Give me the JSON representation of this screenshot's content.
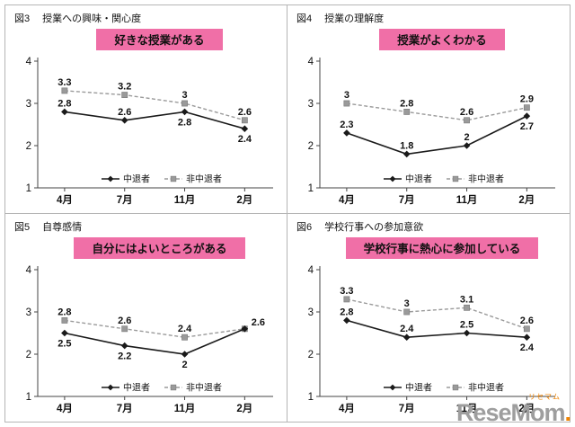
{
  "colors": {
    "title_bg": "#f06fa7",
    "solid_series": "#1a1a1a",
    "dashed_series": "#9a9a9a",
    "axis": "#444444",
    "label_text": "#111111",
    "panel_border": "#b5b5b5",
    "watermark_gray": "#9e9e9e",
    "watermark_orange": "#f08300"
  },
  "axis": {
    "x_labels": [
      "4月",
      "7月",
      "11月",
      "2月"
    ],
    "y_ticks": [
      "4",
      "3",
      "2",
      "1"
    ],
    "y_min": 1,
    "y_max": 4
  },
  "watermark": {
    "main": "ReseMom",
    "dot": ".",
    "sub": "リセマム"
  },
  "chart_data": [
    {
      "type": "line",
      "fig": "図3",
      "caption": "授業への興味・関心度",
      "title": "好きな授業がある",
      "x": [
        "4月",
        "7月",
        "11月",
        "2月"
      ],
      "ylim": [
        1,
        4
      ],
      "series": [
        {
          "name": "中退者",
          "style": "solid",
          "marker": "diamond",
          "values": [
            2.8,
            2.6,
            2.8,
            2.4
          ],
          "labels": [
            "2.8",
            "2.6",
            "2.8",
            "2.4"
          ]
        },
        {
          "name": "非中退者",
          "style": "dashed",
          "marker": "square",
          "values": [
            3.3,
            3.2,
            3.0,
            2.6
          ],
          "labels": [
            "3.3",
            "3.2",
            "3",
            "2.6"
          ]
        }
      ]
    },
    {
      "type": "line",
      "fig": "図4",
      "caption": "授業の理解度",
      "title": "授業がよくわかる",
      "x": [
        "4月",
        "7月",
        "11月",
        "2月"
      ],
      "ylim": [
        1,
        4
      ],
      "series": [
        {
          "name": "中退者",
          "style": "solid",
          "marker": "diamond",
          "values": [
            2.3,
            1.8,
            2.0,
            2.7
          ],
          "labels": [
            "2.3",
            "1.8",
            "2",
            "2.7"
          ]
        },
        {
          "name": "非中退者",
          "style": "dashed",
          "marker": "square",
          "values": [
            3.0,
            2.8,
            2.6,
            2.9
          ],
          "labels": [
            "3",
            "2.8",
            "2.6",
            "2.9"
          ]
        }
      ]
    },
    {
      "type": "line",
      "fig": "図5",
      "caption": "自尊感情",
      "title": "自分にはよいところがある",
      "x": [
        "4月",
        "7月",
        "11月",
        "2月"
      ],
      "ylim": [
        1,
        4
      ],
      "series": [
        {
          "name": "中退者",
          "style": "solid",
          "marker": "diamond",
          "values": [
            2.5,
            2.2,
            2.0,
            2.6
          ],
          "labels": [
            "2.5",
            "2.2",
            "2",
            "2.6"
          ]
        },
        {
          "name": "非中退者",
          "style": "dashed",
          "marker": "square",
          "values": [
            2.8,
            2.6,
            2.4,
            2.6
          ],
          "labels": [
            "2.8",
            "2.6",
            "2.4",
            ""
          ]
        }
      ]
    },
    {
      "type": "line",
      "fig": "図6",
      "caption": "学校行事への参加意欲",
      "title": "学校行事に熱心に参加している",
      "x": [
        "4月",
        "7月",
        "11月",
        "2月"
      ],
      "ylim": [
        1,
        4
      ],
      "series": [
        {
          "name": "中退者",
          "style": "solid",
          "marker": "diamond",
          "values": [
            2.8,
            2.4,
            2.5,
            2.4
          ],
          "labels": [
            "2.8",
            "2.4",
            "2.5",
            "2.4"
          ]
        },
        {
          "name": "非中退者",
          "style": "dashed",
          "marker": "square",
          "values": [
            3.3,
            3.0,
            3.1,
            2.6
          ],
          "labels": [
            "3.3",
            "3",
            "3.1",
            "2.6"
          ]
        }
      ]
    }
  ]
}
